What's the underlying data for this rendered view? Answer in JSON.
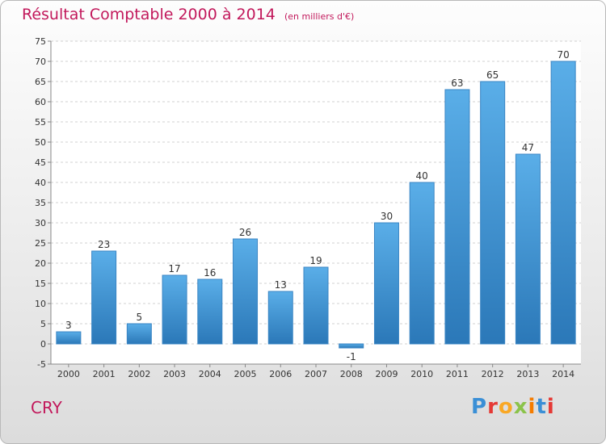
{
  "title": "Résultat Comptable 2000 à 2014",
  "subtitle": "(en milliers d'€)",
  "commune": "CRY",
  "logo": {
    "letters": [
      "P",
      "r",
      "o",
      "x",
      "i",
      "t",
      "i"
    ],
    "colors": [
      "#3a8fd6",
      "#e53935",
      "#f9a825",
      "#8bc34a",
      "#f57c00",
      "#3a8fd6",
      "#e53935"
    ]
  },
  "colors": {
    "bar_top": "#5aaee8",
    "bar_bottom": "#2b78b8",
    "bar_stroke": "#3a85c4",
    "title": "#c2185b",
    "grid": "#d0d0d0"
  },
  "chart_data": {
    "type": "bar",
    "categories": [
      "2000",
      "2001",
      "2002",
      "2003",
      "2004",
      "2005",
      "2006",
      "2007",
      "2008",
      "2009",
      "2010",
      "2011",
      "2012",
      "2013",
      "2014"
    ],
    "values": [
      3,
      23,
      5,
      17,
      16,
      26,
      13,
      19,
      -1,
      30,
      40,
      63,
      65,
      47,
      70
    ],
    "title": "Résultat Comptable 2000 à 2014",
    "subtitle": "(en milliers d'€)",
    "xlabel": "",
    "ylabel": "",
    "ylim": [
      -5,
      75
    ],
    "yticks": [
      -5,
      0,
      5,
      10,
      15,
      20,
      25,
      30,
      35,
      40,
      45,
      50,
      55,
      60,
      65,
      70,
      75
    ],
    "grid": true,
    "legend": "none"
  }
}
